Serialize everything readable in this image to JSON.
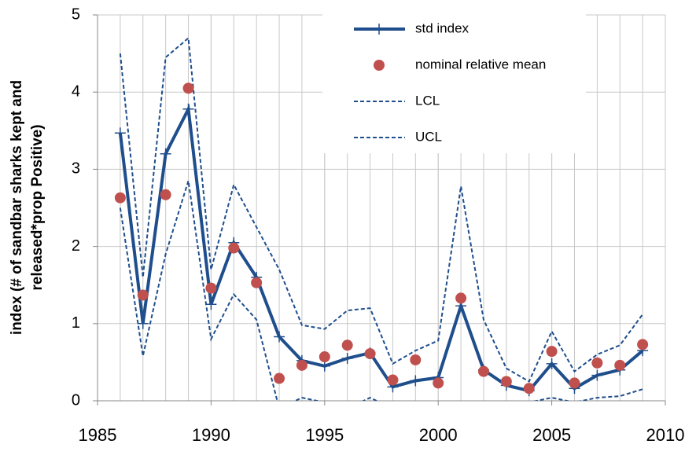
{
  "chart_data": {
    "type": "line",
    "y_label": [
      "index (# of sandbar sharks kept and",
      "released*prop Positive)"
    ],
    "x": [
      1986,
      1987,
      1988,
      1989,
      1990,
      1991,
      1992,
      1993,
      1994,
      1995,
      1996,
      1997,
      1998,
      1999,
      2000,
      2001,
      2002,
      2003,
      2004,
      2005,
      2006,
      2007,
      2008,
      2009
    ],
    "series": [
      {
        "name": "std index",
        "color": "#1f4e8c",
        "style": "line-marker",
        "values": [
          3.47,
          1.0,
          3.2,
          3.78,
          1.25,
          2.05,
          1.6,
          0.83,
          0.52,
          0.45,
          0.55,
          0.62,
          0.18,
          0.26,
          0.3,
          1.23,
          0.4,
          0.2,
          0.13,
          0.48,
          0.16,
          0.33,
          0.4,
          0.65
        ]
      },
      {
        "name": "nominal relative mean",
        "color": "#c0504d",
        "style": "marker",
        "values": [
          2.63,
          1.37,
          2.67,
          4.05,
          1.46,
          1.98,
          1.53,
          0.29,
          0.46,
          0.57,
          0.72,
          0.61,
          0.27,
          0.53,
          0.23,
          1.33,
          0.38,
          0.25,
          0.16,
          0.64,
          0.23,
          0.49,
          0.46,
          0.73
        ]
      },
      {
        "name": "LCL",
        "color": "#1f4e8c",
        "style": "dashed",
        "values": [
          2.5,
          0.58,
          1.9,
          2.85,
          0.8,
          1.38,
          1.05,
          -0.1,
          0.04,
          -0.02,
          -0.1,
          0.04,
          -0.1,
          -0.1,
          -0.1,
          -0.05,
          -0.05,
          -0.02,
          -0.02,
          0.04,
          -0.02,
          0.04,
          0.06,
          0.15
        ]
      },
      {
        "name": "UCL",
        "color": "#1f4e8c",
        "style": "dashed",
        "values": [
          4.5,
          1.6,
          4.45,
          4.7,
          1.7,
          2.8,
          2.25,
          1.7,
          0.98,
          0.93,
          1.17,
          1.2,
          0.48,
          0.65,
          0.78,
          2.78,
          1.05,
          0.42,
          0.25,
          0.9,
          0.38,
          0.6,
          0.72,
          1.12
        ]
      }
    ],
    "xlim": [
      1985,
      2010
    ],
    "xticks": [
      1985,
      1990,
      1995,
      2000,
      2005,
      2010
    ],
    "ylim": [
      0,
      5
    ],
    "yticks": [
      0,
      1,
      2,
      3,
      4,
      5
    ],
    "grid": true,
    "legend": "upper-center"
  }
}
